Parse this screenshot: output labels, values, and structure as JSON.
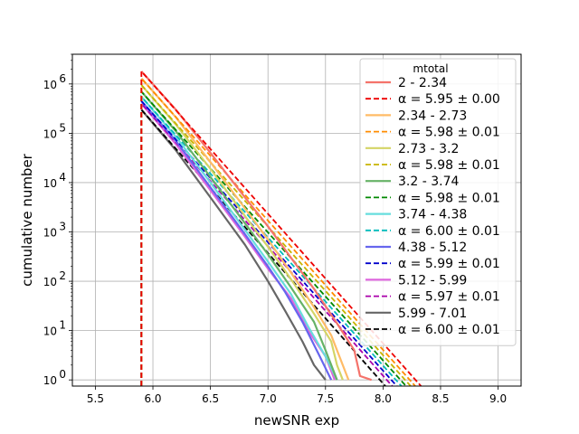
{
  "chart_data": {
    "type": "line",
    "title": "",
    "xlabel": "newSNR exp",
    "ylabel": "cumulative number",
    "xlim": [
      5.3,
      9.2
    ],
    "ylim": [
      0.75,
      4000000
    ],
    "yscale": "log",
    "grid": true,
    "x_ticks": [
      5.5,
      6.0,
      6.5,
      7.0,
      7.5,
      8.0,
      8.5,
      9.0
    ],
    "x_tick_labels": [
      "5.5",
      "6.0",
      "6.5",
      "7.0",
      "7.5",
      "8.0",
      "8.5",
      "9.0"
    ],
    "y_ticks": [
      1,
      10,
      100,
      1000,
      10000,
      100000,
      1000000
    ],
    "y_tick_labels": [
      {
        "base": "10",
        "exp": "0"
      },
      {
        "base": "10",
        "exp": "1"
      },
      {
        "base": "10",
        "exp": "2"
      },
      {
        "base": "10",
        "exp": "3"
      },
      {
        "base": "10",
        "exp": "4"
      },
      {
        "base": "10",
        "exp": "5"
      },
      {
        "base": "10",
        "exp": "6"
      }
    ],
    "legend": {
      "title": "mtotal",
      "position": "right"
    },
    "threshold_x": 5.9,
    "series": [
      {
        "name": "2 - 2.34",
        "fit_label": "α = 5.95 ± 0.00",
        "color": "#f5736b",
        "fit_color": "#ee0000",
        "x": [
          5.9,
          6.2,
          6.5,
          6.8,
          7.0,
          7.2,
          7.4,
          7.6,
          7.75,
          7.8,
          7.9
        ],
        "y": [
          1800000,
          300000,
          40000,
          5000,
          1300,
          300,
          70,
          14,
          4,
          1.2,
          1
        ],
        "fit_start": 1800000,
        "fit_end_x": 8.33
      },
      {
        "name": "2.34 - 2.73",
        "fit_label": "α = 5.98 ± 0.01",
        "color": "#ffbb66",
        "fit_color": "#ff8c00",
        "x": [
          5.9,
          6.2,
          6.5,
          6.8,
          7.0,
          7.2,
          7.4,
          7.55,
          7.65,
          7.7
        ],
        "y": [
          1300000,
          210000,
          26000,
          3000,
          700,
          150,
          30,
          8,
          2,
          1
        ],
        "fit_start": 1300000,
        "fit_end_x": 8.28
      },
      {
        "name": "2.73 - 3.2",
        "fit_label": "α = 5.98 ± 0.01",
        "color": "#d4d465",
        "fit_color": "#c8b400",
        "x": [
          5.9,
          6.2,
          6.5,
          6.8,
          7.0,
          7.2,
          7.4,
          7.55,
          7.6,
          7.65
        ],
        "y": [
          950000,
          150000,
          19000,
          2100,
          500,
          110,
          22,
          6,
          2,
          1
        ],
        "fit_start": 950000,
        "fit_end_x": 8.24
      },
      {
        "name": "3.2 - 3.74",
        "fit_label": "α = 5.98 ± 0.01",
        "color": "#66b266",
        "fit_color": "#008800",
        "x": [
          5.9,
          6.2,
          6.5,
          6.8,
          7.0,
          7.2,
          7.4,
          7.5,
          7.6
        ],
        "y": [
          700000,
          110000,
          13000,
          1500,
          350,
          75,
          15,
          4,
          1
        ],
        "fit_start": 700000,
        "fit_end_x": 8.2
      },
      {
        "name": "3.74 - 4.38",
        "fit_label": "α = 6.00 ± 0.01",
        "color": "#66dddd",
        "fit_color": "#00bbbb",
        "x": [
          5.9,
          6.2,
          6.5,
          6.8,
          7.0,
          7.2,
          7.35,
          7.5,
          7.6
        ],
        "y": [
          550000,
          85000,
          10000,
          1100,
          250,
          55,
          12,
          3,
          1
        ],
        "fit_start": 550000,
        "fit_end_x": 8.16
      },
      {
        "name": "4.38 - 5.12",
        "fit_label": "α = 5.99 ± 0.01",
        "color": "#6666ee",
        "fit_color": "#0000cc",
        "x": [
          5.9,
          6.2,
          6.5,
          6.8,
          7.0,
          7.15,
          7.3,
          7.45,
          7.55
        ],
        "y": [
          450000,
          70000,
          8000,
          900,
          200,
          60,
          15,
          3,
          1
        ],
        "fit_start": 450000,
        "fit_end_x": 8.12
      },
      {
        "name": "5.12 - 5.99",
        "fit_label": "α = 5.97 ± 0.01",
        "color": "#dd66dd",
        "fit_color": "#aa00aa",
        "x": [
          5.9,
          6.2,
          6.5,
          6.8,
          7.0,
          7.2,
          7.35,
          7.5,
          7.58
        ],
        "y": [
          400000,
          60000,
          7000,
          800,
          180,
          45,
          10,
          3,
          1
        ],
        "fit_start": 400000,
        "fit_end_x": 8.08
      },
      {
        "name": "5.99 - 7.01",
        "fit_label": "α = 6.00 ± 0.01",
        "color": "#666666",
        "fit_color": "#000000",
        "x": [
          5.9,
          6.2,
          6.5,
          6.8,
          7.0,
          7.15,
          7.3,
          7.4,
          7.5
        ],
        "y": [
          300000,
          45000,
          5000,
          550,
          100,
          25,
          6,
          2,
          1
        ],
        "fit_start": 300000,
        "fit_end_x": 8.02
      }
    ]
  }
}
